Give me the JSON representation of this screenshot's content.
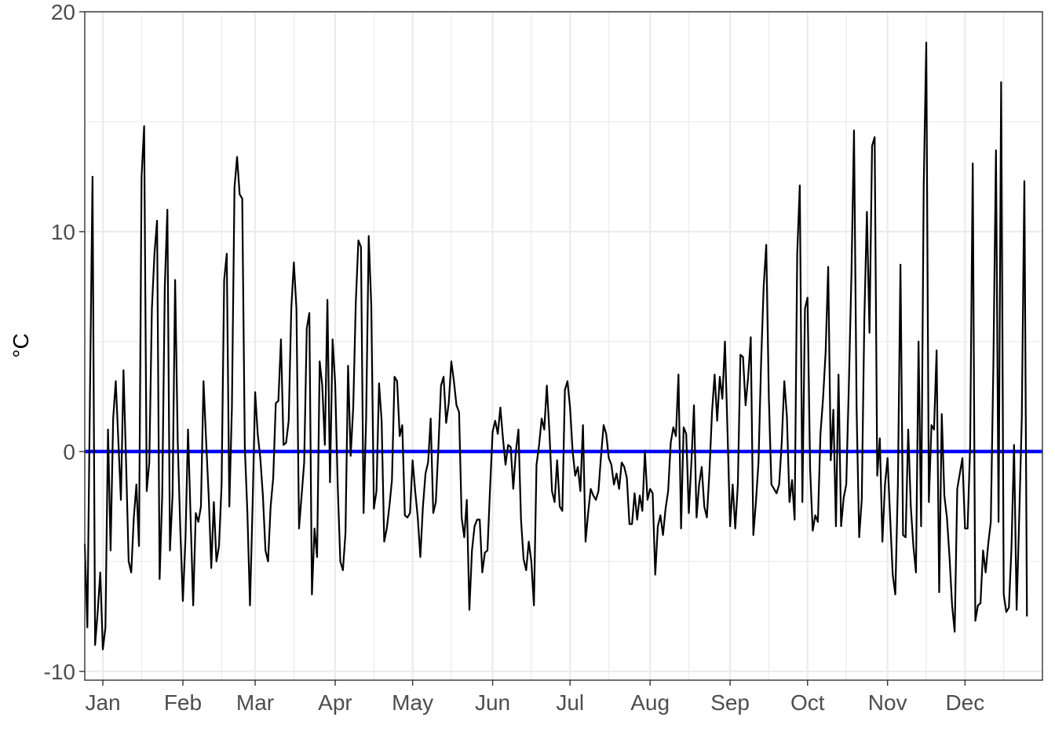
{
  "chart_data": {
    "type": "line",
    "title": "",
    "xlabel": "",
    "ylabel": "°C",
    "ylim": [
      -10.4,
      20
    ],
    "yticks": [
      -10,
      0,
      10,
      20
    ],
    "xlim": [
      "2018-12-25",
      "2019-12-31"
    ],
    "month_ticks": [
      {
        "label": "Jan",
        "date": "2019-01-01"
      },
      {
        "label": "Feb",
        "date": "2019-02-01"
      },
      {
        "label": "Mar",
        "date": "2019-03-01"
      },
      {
        "label": "Apr",
        "date": "2019-04-01"
      },
      {
        "label": "May",
        "date": "2019-05-01"
      },
      {
        "label": "Jun",
        "date": "2019-06-01"
      },
      {
        "label": "Jul",
        "date": "2019-07-01"
      },
      {
        "label": "Aug",
        "date": "2019-08-01"
      },
      {
        "label": "Sep",
        "date": "2019-09-01"
      },
      {
        "label": "Oct",
        "date": "2019-10-01"
      },
      {
        "label": "Nov",
        "date": "2019-11-01"
      },
      {
        "label": "Dec",
        "date": "2019-12-01"
      }
    ],
    "grid": true,
    "reference_line": {
      "y": 0,
      "color": "#0000ff"
    },
    "series": [
      {
        "color": "#000000",
        "x_start": "2018-12-25",
        "x_step_days": 1,
        "values": [
          -4.2,
          -8.0,
          2.5,
          12.5,
          -8.8,
          -7.3,
          -5.5,
          -9.0,
          -8.0,
          1.0,
          -4.5,
          1.5,
          3.2,
          0.5,
          -2.2,
          3.7,
          -0.5,
          -5.0,
          -5.5,
          -3.0,
          -1.5,
          -4.3,
          12.5,
          14.8,
          -1.8,
          -0.5,
          6.5,
          9.0,
          10.5,
          -5.8,
          -2.0,
          7.5,
          11.0,
          -4.5,
          -2.0,
          7.8,
          0.5,
          -3.5,
          -6.8,
          -4.0,
          1.0,
          -3.0,
          -7.0,
          -2.8,
          -3.2,
          -2.5,
          3.2,
          0.5,
          -2.0,
          -5.3,
          -2.3,
          -5.0,
          -4.3,
          -1.5,
          7.8,
          9.0,
          -2.5,
          2.0,
          12.0,
          13.4,
          11.7,
          11.5,
          0.2,
          -2.8,
          -7.0,
          -2.5,
          2.7,
          0.8,
          -0.3,
          -2.0,
          -4.5,
          -5.0,
          -2.5,
          -1.2,
          2.2,
          2.3,
          5.1,
          0.3,
          0.4,
          1.4,
          6.5,
          8.6,
          6.5,
          -3.5,
          -2.0,
          -0.5,
          5.6,
          6.3,
          -6.5,
          -3.5,
          -4.8,
          4.1,
          3.0,
          0.3,
          6.9,
          -1.4,
          5.1,
          3.1,
          -1.6,
          -5.0,
          -5.4,
          -3.7,
          3.9,
          -0.2,
          2.0,
          6.8,
          9.6,
          9.3,
          -2.8,
          1.5,
          9.8,
          6.6,
          -2.6,
          -1.8,
          3.1,
          1.4,
          -4.1,
          -3.5,
          -2.5,
          -1.3,
          3.4,
          3.2,
          0.7,
          1.2,
          -2.9,
          -3.0,
          -2.8,
          -0.4,
          -1.8,
          -3.0,
          -4.8,
          -2.5,
          -1.0,
          -0.5,
          1.5,
          -2.8,
          -2.3,
          0.2,
          3.0,
          3.4,
          1.3,
          2.2,
          4.1,
          3.2,
          2.1,
          1.8,
          -3.0,
          -3.9,
          -2.2,
          -7.2,
          -4.5,
          -3.4,
          -3.1,
          -3.1,
          -5.5,
          -4.6,
          -4.5,
          -1.7,
          0.9,
          1.4,
          0.8,
          2.0,
          0.6,
          -0.6,
          0.3,
          0.2,
          -1.7,
          0.0,
          1.0,
          -3.1,
          -4.9,
          -5.4,
          -4.1,
          -5.0,
          -7.0,
          -0.6,
          0.3,
          1.5,
          1.0,
          3.0,
          0.9,
          -1.8,
          -2.3,
          -0.4,
          -2.5,
          -2.7,
          2.8,
          3.2,
          2.0,
          0.0,
          -1.1,
          -0.7,
          -1.8,
          1.2,
          -4.1,
          -2.8,
          -1.7,
          -2.0,
          -2.2,
          -1.8,
          -0.2,
          1.2,
          0.8,
          -0.3,
          -0.6,
          -1.5,
          -1.0,
          -1.7,
          -0.5,
          -0.7,
          -1.2,
          -3.3,
          -3.3,
          -1.9,
          -3.1,
          -2.0,
          -2.7,
          0.0,
          -2.2,
          -1.7,
          -1.9,
          -5.6,
          -3.4,
          -2.9,
          -3.8,
          -2.6,
          -1.8,
          0.4,
          1.1,
          0.7,
          3.5,
          -3.5,
          1.1,
          0.8,
          -2.8,
          -0.5,
          2.1,
          -3.0,
          -1.5,
          -0.7,
          -2.5,
          -3.0,
          -0.9,
          1.8,
          3.5,
          1.4,
          3.4,
          2.4,
          5.0,
          0.9,
          -3.4,
          -1.5,
          -3.5,
          -1.5,
          4.4,
          4.3,
          2.1,
          3.4,
          5.2,
          -3.8,
          -2.3,
          -0.5,
          4.0,
          7.5,
          9.4,
          2.5,
          -1.5,
          -1.7,
          -1.9,
          -1.5,
          0.4,
          3.2,
          1.6,
          -2.3,
          -1.3,
          -3.1,
          9.0,
          12.1,
          -2.3,
          6.5,
          7.0,
          -0.8,
          -3.6,
          -2.9,
          -3.2,
          0.8,
          2.4,
          4.5,
          8.4,
          -0.4,
          1.9,
          -3.4,
          3.5,
          -3.4,
          -2.1,
          -1.5,
          3.0,
          8.0,
          14.6,
          2.0,
          -3.9,
          -2.2,
          6.0,
          10.9,
          5.4,
          13.9,
          14.3,
          -1.1,
          0.6,
          -4.1,
          -1.5,
          -0.3,
          -3.0,
          -5.6,
          -6.5,
          -1.5,
          8.5,
          -3.8,
          -3.9,
          1.0,
          -2.5,
          -4.3,
          -5.5,
          5.0,
          -3.4,
          12.0,
          18.6,
          -2.3,
          1.2,
          1.0,
          4.6,
          -6.4,
          1.7,
          -2.0,
          -3.0,
          -4.8,
          -7.0,
          -8.2,
          -1.7,
          -1.0,
          -0.3,
          -3.5,
          -3.5,
          0.3,
          13.1,
          -7.7,
          -7.0,
          -6.9,
          -4.5,
          -5.5,
          -4.2,
          -3.2,
          4.0,
          13.7,
          -3.2,
          16.8,
          -6.5,
          -7.3,
          -7.1,
          -4.4,
          0.3,
          -7.2,
          -3.0,
          1.5,
          12.3,
          -7.5
        ]
      }
    ]
  }
}
